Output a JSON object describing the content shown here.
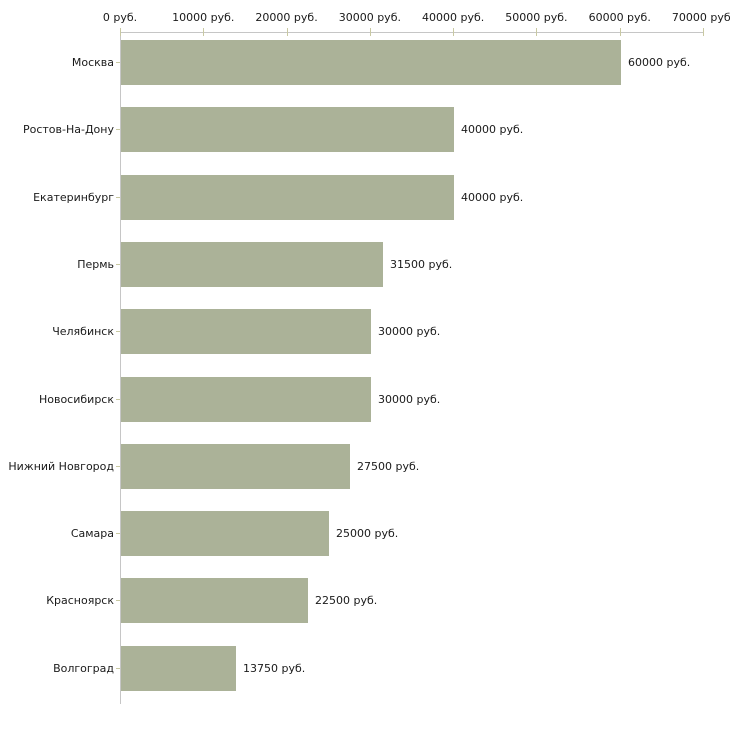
{
  "chart_data": {
    "type": "bar",
    "orientation": "horizontal",
    "title": "",
    "unit_suffix": " руб.",
    "categories": [
      "Москва",
      "Ростов-На-Дону",
      "Екатеринбург",
      "Пермь",
      "Челябинск",
      "Новосибирск",
      "Нижний Новгород",
      "Самара",
      "Красноярск",
      "Волгоград"
    ],
    "values": [
      60000,
      40000,
      40000,
      31500,
      30000,
      30000,
      27500,
      25000,
      22500,
      13750
    ],
    "value_labels": [
      "60000 руб.",
      "40000 руб.",
      "40000 руб.",
      "31500 руб.",
      "30000 руб.",
      "30000 руб.",
      "27500 руб.",
      "25000 руб.",
      "22500 руб.",
      "13750 руб."
    ],
    "x_axis": {
      "position": "top",
      "min": 0,
      "max": 70000,
      "tick_interval": 10000,
      "tick_values": [
        0,
        10000,
        20000,
        30000,
        40000,
        50000,
        60000,
        70000
      ],
      "tick_labels": [
        "0 руб.",
        "10000 руб.",
        "20000 руб.",
        "30000 руб.",
        "40000 руб.",
        "50000 руб.",
        "60000 руб.",
        "70000 руб."
      ]
    },
    "legend": "none",
    "grid": "off",
    "colors": {
      "bar": "#abb298",
      "axis_line": "#c6c6c6",
      "tick_mark": "#c9c9a2",
      "text": "#1a1a1a",
      "background": "#ffffff"
    }
  }
}
